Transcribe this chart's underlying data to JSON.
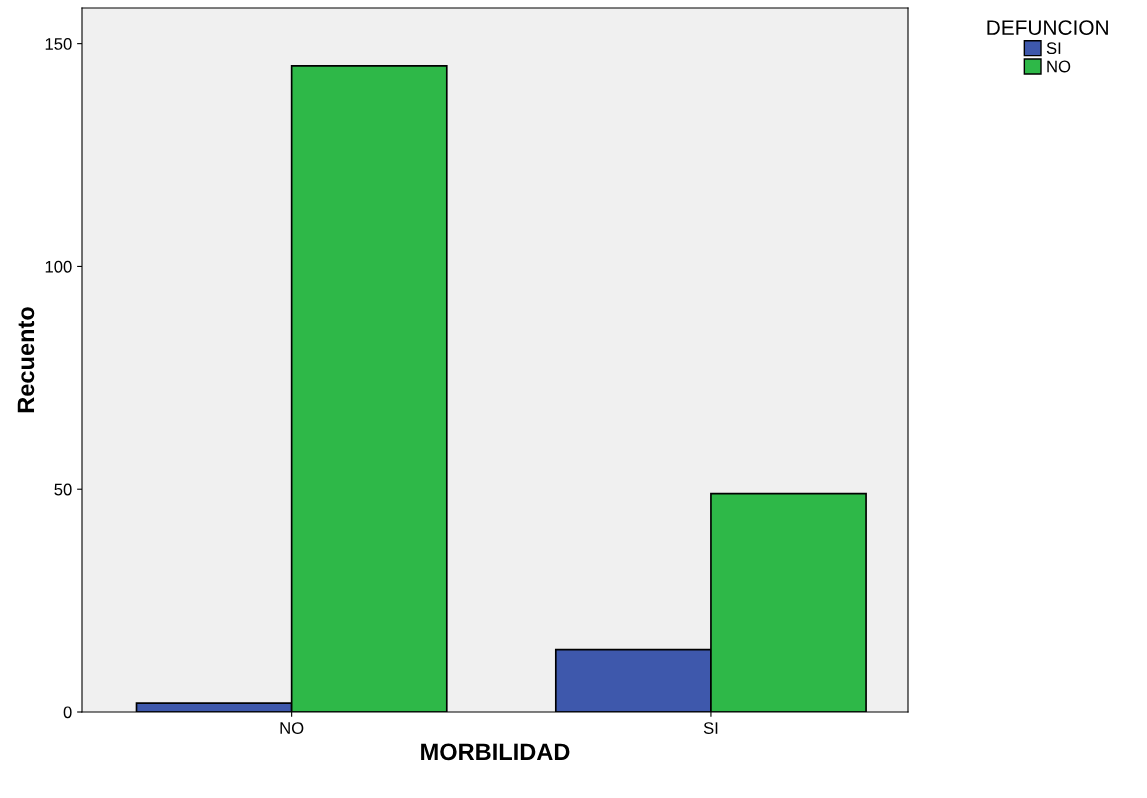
{
  "chart_data": {
    "type": "bar",
    "xlabel": "MORBILIDAD",
    "ylabel": "Recuento",
    "legend_title": "DEFUNCION",
    "categories": [
      "NO",
      "SI"
    ],
    "series": [
      {
        "name": "SI",
        "color": "#3e58ac",
        "values": [
          2,
          14
        ]
      },
      {
        "name": "NO",
        "color": "#2eb848",
        "values": [
          145,
          49
        ]
      }
    ],
    "ylim": [
      0,
      158
    ],
    "yticks": [
      0,
      50,
      100,
      150
    ],
    "grid": false,
    "legend": "top right"
  }
}
